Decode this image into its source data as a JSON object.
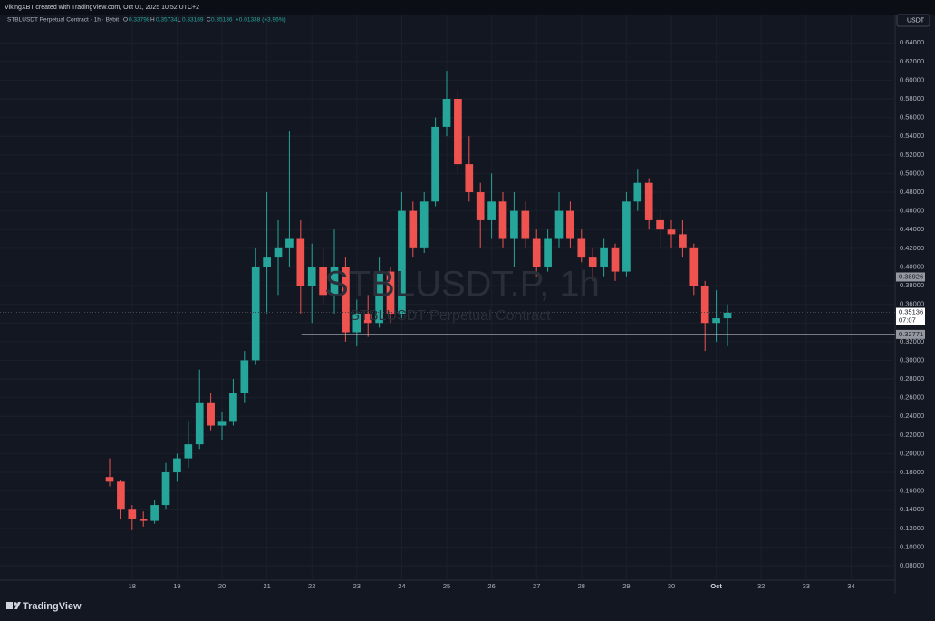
{
  "header": "VikingXBT created with TradingView.com, Oct 01, 2025 10:52 UTC+2",
  "currency": "USDT",
  "legend": {
    "symbol": "STBLUSDT Perpetual Contract · 1h · Bybit",
    "open": {
      "letter": "O",
      "text": "0.33798"
    },
    "high": {
      "letter": "H",
      "text": "0.35734"
    },
    "low": {
      "letter": "L",
      "text": "0.33189"
    },
    "close": {
      "letter": "C",
      "text": "0.35136"
    },
    "change": "+0.01338 (+3.96%)"
  },
  "watermark": {
    "ticker": "STBLUSDT.P, 1h",
    "name": "STBLUSDT Perpetual Contract"
  },
  "brand": "TradingView",
  "chart_data": {
    "type": "candlestick",
    "up_color": "#26a69a",
    "down_color": "#ef5350",
    "xlim": [
      15.06,
      34.98
    ],
    "xticks": [
      18,
      19,
      20,
      21,
      22,
      23,
      24,
      25,
      26,
      27,
      28,
      29,
      30,
      {
        "value": 31,
        "label": "Oct"
      },
      32,
      33,
      34
    ],
    "ylim": [
      0.0645,
      0.6703
    ],
    "yticks": [
      {
        "value": 0.08,
        "label": "0.08000"
      },
      {
        "value": 0.1,
        "label": "0.10000"
      },
      {
        "value": 0.12,
        "label": "0.12000"
      },
      {
        "value": 0.14,
        "label": "0.14000"
      },
      {
        "value": 0.16,
        "label": "0.16000"
      },
      {
        "value": 0.18,
        "label": "0.18000"
      },
      {
        "value": 0.2,
        "label": "0.20000"
      },
      {
        "value": 0.22,
        "label": "0.22000"
      },
      {
        "value": 0.24,
        "label": "0.24000"
      },
      {
        "value": 0.26,
        "label": "0.26000"
      },
      {
        "value": 0.28,
        "label": "0.28000"
      },
      {
        "value": 0.3,
        "label": "0.30000"
      },
      {
        "value": 0.32,
        "label": "0.32000"
      },
      {
        "value": 0.34,
        "label": "0.34000"
      },
      {
        "value": 0.36,
        "label": "0.36000"
      },
      {
        "value": 0.38,
        "label": "0.38000"
      },
      {
        "value": 0.4,
        "label": "0.40000"
      },
      {
        "value": 0.42,
        "label": "0.42000"
      },
      {
        "value": 0.44,
        "label": "0.44000"
      },
      {
        "value": 0.46,
        "label": "0.46000"
      },
      {
        "value": 0.48,
        "label": "0.48000"
      },
      {
        "value": 0.5,
        "label": "0.50000"
      },
      {
        "value": 0.52,
        "label": "0.52000"
      },
      {
        "value": 0.54,
        "label": "0.54000"
      },
      {
        "value": 0.56,
        "label": "0.56000"
      },
      {
        "value": 0.58,
        "label": "0.58000"
      },
      {
        "value": 0.6,
        "label": "0.60000"
      },
      {
        "value": 0.62,
        "label": "0.62000"
      },
      {
        "value": 0.64,
        "label": "0.64000"
      }
    ],
    "grid": true,
    "x": [
      17.5,
      17.75,
      18,
      18.25,
      18.5,
      18.75,
      19,
      19.25,
      19.5,
      19.75,
      20,
      20.25,
      20.5,
      20.75,
      21,
      21.25,
      21.5,
      21.75,
      22,
      22.25,
      22.5,
      22.75,
      23,
      23.25,
      23.5,
      23.75,
      24,
      24.25,
      24.5,
      24.75,
      25,
      25.25,
      25.5,
      25.75,
      26,
      26.25,
      26.5,
      26.75,
      27,
      27.25,
      27.5,
      27.75,
      28,
      28.25,
      28.5,
      28.75,
      29,
      29.25,
      29.5,
      29.75,
      30,
      30.25,
      30.5,
      30.75,
      31,
      31.25
    ],
    "open": [
      0.175,
      0.17,
      0.14,
      0.13,
      0.128,
      0.145,
      0.18,
      0.195,
      0.21,
      0.255,
      0.23,
      0.235,
      0.265,
      0.3,
      0.4,
      0.41,
      0.42,
      0.43,
      0.38,
      0.4,
      0.37,
      0.4,
      0.33,
      0.35,
      0.34,
      0.395,
      0.35,
      0.46,
      0.42,
      0.47,
      0.55,
      0.58,
      0.51,
      0.48,
      0.45,
      0.47,
      0.43,
      0.46,
      0.43,
      0.4,
      0.43,
      0.46,
      0.43,
      0.41,
      0.4,
      0.42,
      0.395,
      0.47,
      0.49,
      0.45,
      0.44,
      0.435,
      0.42,
      0.38,
      0.34,
      0.345
    ],
    "high": [
      0.195,
      0.172,
      0.145,
      0.138,
      0.15,
      0.19,
      0.2,
      0.235,
      0.29,
      0.265,
      0.245,
      0.28,
      0.31,
      0.42,
      0.48,
      0.45,
      0.545,
      0.45,
      0.425,
      0.42,
      0.44,
      0.41,
      0.365,
      0.37,
      0.41,
      0.4,
      0.48,
      0.47,
      0.48,
      0.56,
      0.61,
      0.59,
      0.54,
      0.49,
      0.5,
      0.48,
      0.48,
      0.47,
      0.44,
      0.44,
      0.48,
      0.47,
      0.44,
      0.42,
      0.43,
      0.425,
      0.48,
      0.505,
      0.495,
      0.46,
      0.45,
      0.45,
      0.425,
      0.385,
      0.375,
      0.36
    ],
    "low": [
      0.165,
      0.13,
      0.118,
      0.122,
      0.125,
      0.14,
      0.17,
      0.185,
      0.205,
      0.225,
      0.215,
      0.23,
      0.255,
      0.295,
      0.35,
      0.37,
      0.4,
      0.35,
      0.34,
      0.36,
      0.35,
      0.32,
      0.315,
      0.325,
      0.335,
      0.34,
      0.345,
      0.41,
      0.415,
      0.465,
      0.54,
      0.5,
      0.47,
      0.42,
      0.43,
      0.42,
      0.4,
      0.42,
      0.39,
      0.395,
      0.42,
      0.42,
      0.405,
      0.385,
      0.39,
      0.385,
      0.39,
      0.46,
      0.44,
      0.42,
      0.42,
      0.41,
      0.37,
      0.31,
      0.32,
      0.315
    ],
    "close": [
      0.17,
      0.14,
      0.13,
      0.128,
      0.145,
      0.18,
      0.195,
      0.21,
      0.255,
      0.23,
      0.235,
      0.265,
      0.3,
      0.4,
      0.41,
      0.42,
      0.43,
      0.38,
      0.4,
      0.37,
      0.4,
      0.33,
      0.35,
      0.34,
      0.395,
      0.35,
      0.46,
      0.42,
      0.47,
      0.55,
      0.58,
      0.51,
      0.48,
      0.45,
      0.47,
      0.43,
      0.46,
      0.43,
      0.4,
      0.43,
      0.46,
      0.43,
      0.41,
      0.4,
      0.42,
      0.395,
      0.47,
      0.49,
      0.45,
      0.44,
      0.435,
      0.42,
      0.38,
      0.34,
      0.345,
      0.351
    ],
    "levels": [
      {
        "value": 0.38926,
        "start": 27.15
      },
      {
        "value": 0.32771,
        "start": 21.77
      }
    ],
    "last": {
      "value": 0.35136,
      "countdown": "07:07"
    }
  }
}
